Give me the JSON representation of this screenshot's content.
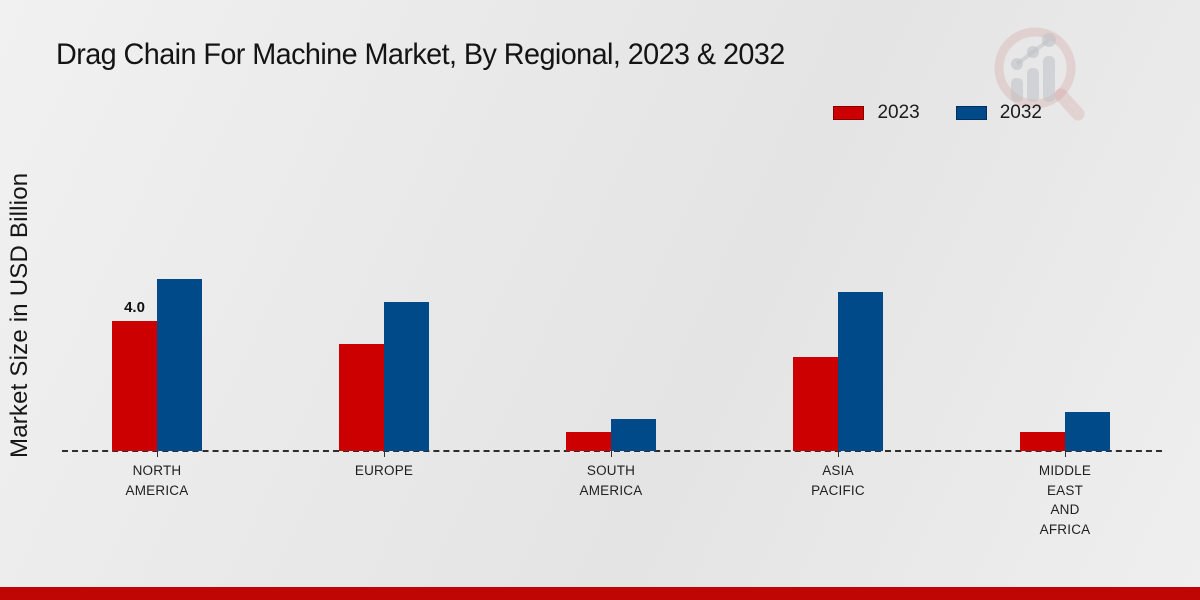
{
  "page": {
    "background_color": "#eaeaea",
    "footer_band_color": "#c00505",
    "text_color": "#1a1a1a"
  },
  "watermark": {
    "icon": "magnifier-bar-chart-logo"
  },
  "chart_data": {
    "type": "bar",
    "title": "Drag Chain For Machine Market, By Regional, 2023 & 2032",
    "ylabel": "Market Size in USD Billion",
    "xlabel": "",
    "categories": [
      "NORTH AMERICA",
      "EUROPE",
      "SOUTH AMERICA",
      "ASIA PACIFIC",
      "MIDDLE EAST AND AFRICA"
    ],
    "category_lines": [
      [
        "NORTH",
        "AMERICA"
      ],
      [
        "EUROPE"
      ],
      [
        "SOUTH",
        "AMERICA"
      ],
      [
        "ASIA",
        "PACIFIC"
      ],
      [
        "MIDDLE",
        "EAST",
        "AND",
        "AFRICA"
      ]
    ],
    "series": [
      {
        "name": "2023",
        "color": "#cc0000",
        "values": [
          4.0,
          3.3,
          0.6,
          2.9,
          0.6
        ]
      },
      {
        "name": "2032",
        "color": "#004a8a",
        "values": [
          5.3,
          4.6,
          1.0,
          4.9,
          1.2
        ]
      }
    ],
    "bar_labels": [
      {
        "series_index": 0,
        "category_index": 0,
        "text": "4.0"
      }
    ],
    "ylim": [
      0,
      6
    ],
    "grid": false,
    "y_tick_labels_visible": false,
    "baseline_style": "dashed",
    "legend_position": "top-right"
  }
}
